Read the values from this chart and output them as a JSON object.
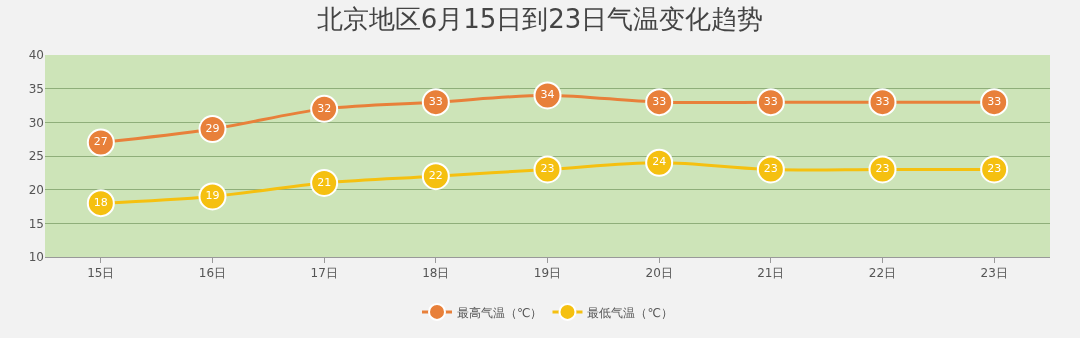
{
  "chart_data": {
    "type": "line",
    "title": "北京地区6月15日到23日气温变化趋势",
    "categories": [
      "15日",
      "16日",
      "17日",
      "18日",
      "19日",
      "20日",
      "21日",
      "22日",
      "23日"
    ],
    "series": [
      {
        "name": "最高气温（℃）",
        "color": "#e8803a",
        "values": [
          27,
          29,
          32,
          33,
          34,
          33,
          33,
          33,
          33
        ]
      },
      {
        "name": "最低气温（℃）",
        "color": "#f5c010",
        "values": [
          18,
          19,
          21,
          22,
          23,
          24,
          23,
          23,
          23
        ]
      }
    ],
    "ylim": [
      10,
      40
    ],
    "yticks": [
      10,
      15,
      20,
      25,
      30,
      35,
      40
    ],
    "grid": "y",
    "legend": "bottom",
    "marker": "circle",
    "line_style": "solid",
    "data_labels": true
  }
}
